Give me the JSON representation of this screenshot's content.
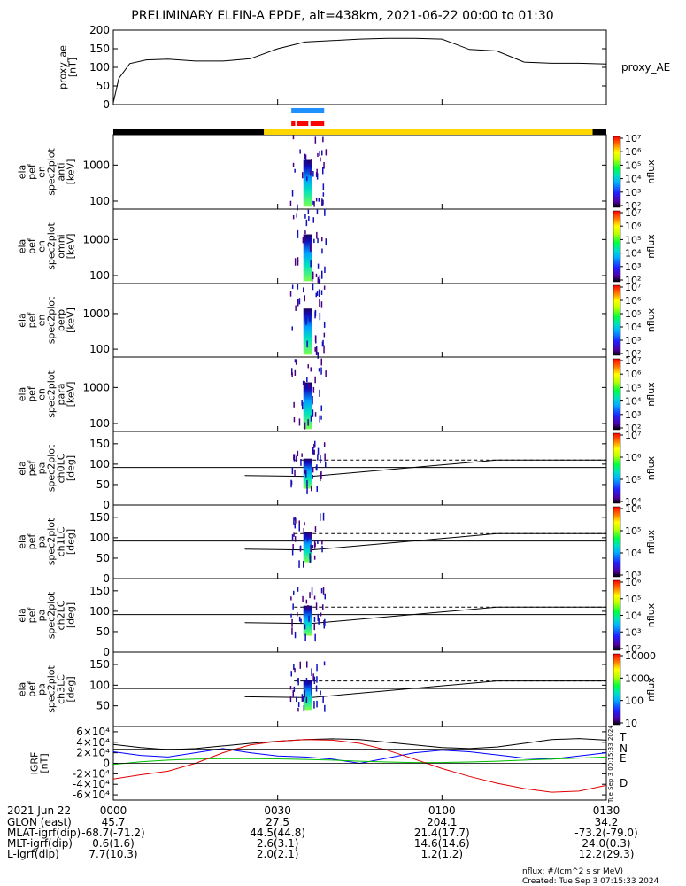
{
  "title": "PRELIMINARY ELFIN-A EPDE, alt=438km, 2021-06-22 00:00 to 01:30",
  "time_axis": {
    "date": "2021 Jun 22",
    "ticks": [
      "0000",
      "0030",
      "0100",
      "0130"
    ],
    "rows": [
      {
        "label": "GLON (east)",
        "values": [
          "45.7",
          "27.5",
          "204.1",
          "34.2"
        ]
      },
      {
        "label": "MLAT-igrf(dip)",
        "values": [
          "-68.7(-71.2)",
          "44.5(44.8)",
          "21.4(17.7)",
          "-73.2(-79.0)"
        ]
      },
      {
        "label": "MLT-igrf(dip)",
        "values": [
          "0.6(1.6)",
          "2.6(3.1)",
          "14.6(14.6)",
          "24.0(0.3)"
        ]
      },
      {
        "label": "L-igrf(dip)",
        "values": [
          "7.7(10.3)",
          "2.0(2.1)",
          "1.2(1.2)",
          "12.2(29.3)"
        ]
      }
    ]
  },
  "footer": {
    "units": "nflux: #/(cm^2 s sr MeV)",
    "created": "Created: Tue Sep  3 07:15:33 2024"
  },
  "side_stamp": "Tue Sep  3 00:15:33 2024",
  "colors": {
    "science_bar": "#ffd700",
    "orbit_black": "#000000",
    "blue_bar": "#1e90ff",
    "red_bar": "#ff0000",
    "T": "#000000",
    "N": "#0000ff",
    "E": "#00c000",
    "D": "#e00000"
  },
  "chart_data": [
    {
      "type": "line",
      "ylabel_lines": [
        "proxy_ae",
        "[nT]"
      ],
      "ylim": [
        0,
        200
      ],
      "yticks": [
        "0",
        "50",
        "100",
        "150",
        "200"
      ],
      "legend": [
        "proxy_AE"
      ],
      "series": [
        {
          "name": "proxy_AE",
          "x": [
            0,
            1,
            3,
            6,
            10,
            15,
            20,
            25,
            30,
            35,
            40,
            45,
            50,
            55,
            60,
            65,
            70,
            75,
            80,
            85,
            90
          ],
          "values": [
            5,
            70,
            110,
            120,
            122,
            117,
            117,
            123,
            150,
            168,
            172,
            176,
            178,
            178,
            176,
            148,
            144,
            114,
            111,
            111,
            109
          ]
        }
      ]
    },
    {
      "type": "heatmap",
      "ylabel_lines": [
        "ela",
        "pef",
        "en",
        "spec2plot",
        "anti",
        "[keV]"
      ],
      "yscale": "log",
      "ylim": [
        60,
        7000
      ],
      "yticks": [
        "100",
        "1000"
      ],
      "colorbar": {
        "label": "nflux",
        "ticks": [
          "10²",
          "10³",
          "10⁴",
          "10⁵",
          "10⁶",
          "10⁷"
        ]
      }
    },
    {
      "type": "heatmap",
      "ylabel_lines": [
        "ela",
        "pef",
        "en",
        "spec2plot",
        "omni",
        "[keV]"
      ],
      "yscale": "log",
      "ylim": [
        60,
        7000
      ],
      "yticks": [
        "100",
        "1000"
      ],
      "colorbar": {
        "label": "nflux",
        "ticks": [
          "10²",
          "10³",
          "10⁴",
          "10⁵",
          "10⁶",
          "10⁷"
        ]
      }
    },
    {
      "type": "heatmap",
      "ylabel_lines": [
        "ela",
        "pef",
        "en",
        "spec2plot",
        "perp",
        "[keV]"
      ],
      "yscale": "log",
      "ylim": [
        60,
        7000
      ],
      "yticks": [
        "100",
        "1000"
      ],
      "colorbar": {
        "label": "nflux",
        "ticks": [
          "10²",
          "10³",
          "10⁴",
          "10⁵",
          "10⁶",
          "10⁷"
        ]
      }
    },
    {
      "type": "heatmap",
      "ylabel_lines": [
        "ela",
        "pef",
        "en",
        "spec2plot",
        "para",
        "[keV]"
      ],
      "yscale": "log",
      "ylim": [
        60,
        7000
      ],
      "yticks": [
        "100",
        "1000"
      ],
      "colorbar": {
        "label": "nflux",
        "ticks": [
          "10²",
          "10³",
          "10⁴",
          "10⁵",
          "10⁶",
          "10⁷"
        ]
      }
    },
    {
      "type": "heatmap",
      "ylabel_lines": [
        "ela",
        "pef",
        "pa",
        "spec2plot",
        "ch0LC",
        "[deg]"
      ],
      "ylim": [
        0,
        180
      ],
      "yticks": [
        "0",
        "50",
        "100",
        "150"
      ],
      "colorbar": {
        "label": "nflux",
        "ticks": [
          "10⁴",
          "10⁵",
          "10⁶",
          "10⁷"
        ]
      }
    },
    {
      "type": "heatmap",
      "ylabel_lines": [
        "ela",
        "pef",
        "pa",
        "spec2plot",
        "ch1LC",
        "[deg]"
      ],
      "ylim": [
        0,
        180
      ],
      "yticks": [
        "0",
        "50",
        "100",
        "150"
      ],
      "colorbar": {
        "label": "nflux",
        "ticks": [
          "10³",
          "10⁴",
          "10⁵",
          "10⁶"
        ]
      }
    },
    {
      "type": "heatmap",
      "ylabel_lines": [
        "ela",
        "pef",
        "pa",
        "spec2plot",
        "ch2LC",
        "[deg]"
      ],
      "ylim": [
        0,
        180
      ],
      "yticks": [
        "0",
        "50",
        "100",
        "150"
      ],
      "colorbar": {
        "label": "nflux",
        "ticks": [
          "10²",
          "10³",
          "10⁴",
          "10⁵",
          "10⁶"
        ]
      }
    },
    {
      "type": "heatmap",
      "ylabel_lines": [
        "ela",
        "pef",
        "pa",
        "spec2plot",
        "ch3LC",
        "[deg]"
      ],
      "ylim": [
        0,
        180
      ],
      "yticks": [
        "50",
        "100",
        "150"
      ],
      "colorbar": {
        "label": "nflux",
        "ticks": [
          "10",
          "100",
          "1000",
          "10000"
        ]
      }
    },
    {
      "type": "line",
      "ylabel_lines": [
        "IGRF",
        "[nT]"
      ],
      "ylim": [
        -70000,
        70000
      ],
      "yticks": [
        "6×10⁴",
        "4×10⁴",
        "2×10⁴",
        "0",
        "-2×10⁴",
        "-4×10⁴",
        "-6×10⁴"
      ],
      "legend": [
        "T",
        "N",
        "E",
        "D"
      ],
      "series": [
        {
          "name": "T",
          "x": [
            0,
            5,
            10,
            15,
            20,
            25,
            30,
            35,
            40,
            45,
            50,
            55,
            60,
            65,
            70,
            75,
            80,
            85,
            90
          ],
          "values": [
            36000,
            30000,
            26000,
            28000,
            33000,
            38000,
            42000,
            45000,
            46500,
            45000,
            40000,
            35000,
            30000,
            28000,
            31000,
            38000,
            45000,
            47000,
            44000
          ]
        },
        {
          "name": "N",
          "x": [
            0,
            5,
            10,
            15,
            20,
            25,
            30,
            35,
            40,
            45,
            50,
            55,
            60,
            65,
            70,
            75,
            80,
            85,
            90
          ],
          "values": [
            22000,
            15000,
            12000,
            20000,
            28000,
            20000,
            14000,
            12000,
            8000,
            0,
            10000,
            20000,
            25000,
            22000,
            16000,
            10000,
            8000,
            14000,
            20000
          ]
        },
        {
          "name": "E",
          "x": [
            0,
            5,
            10,
            15,
            20,
            25,
            30,
            35,
            40,
            45,
            50,
            55,
            60,
            65,
            70,
            75,
            80,
            85,
            90
          ],
          "values": [
            -2000,
            3000,
            6000,
            8000,
            9000,
            9000,
            8500,
            7500,
            6000,
            4000,
            2500,
            1500,
            1500,
            2500,
            4000,
            6000,
            8000,
            10000,
            12000
          ]
        },
        {
          "name": "D",
          "x": [
            0,
            5,
            10,
            15,
            20,
            25,
            30,
            35,
            40,
            45,
            50,
            55,
            60,
            65,
            70,
            75,
            80,
            85,
            90
          ],
          "values": [
            -30000,
            -22000,
            -15000,
            0,
            20000,
            35000,
            42000,
            45000,
            44000,
            38000,
            25000,
            8000,
            -10000,
            -25000,
            -38000,
            -48000,
            -55000,
            -53000,
            -42000
          ]
        }
      ]
    }
  ]
}
